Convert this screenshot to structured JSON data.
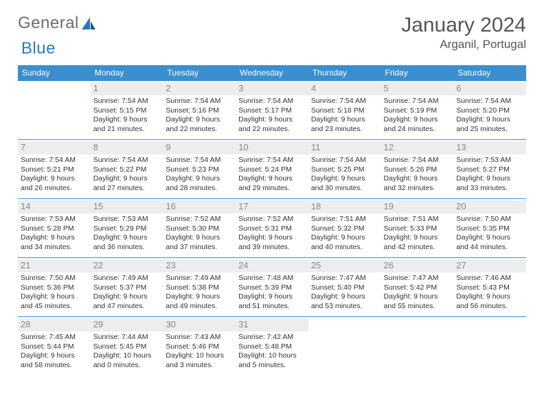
{
  "logo": {
    "text1": "General",
    "text2": "Blue"
  },
  "title": "January 2024",
  "location": "Arganil, Portugal",
  "weekdays": [
    "Sunday",
    "Monday",
    "Tuesday",
    "Wednesday",
    "Thursday",
    "Friday",
    "Saturday"
  ],
  "colors": {
    "header_bg": "#3a8fcf",
    "header_fg": "#ffffff",
    "daynum_bg": "#ededed",
    "daynum_fg": "#888888",
    "row_border": "#3a8fcf",
    "text": "#333333",
    "logo_gray": "#6d6d6d",
    "logo_blue": "#2a7ab8"
  },
  "weeks": [
    [
      null,
      {
        "d": "1",
        "sr": "Sunrise: 7:54 AM",
        "ss": "Sunset: 5:15 PM",
        "dl1": "Daylight: 9 hours",
        "dl2": "and 21 minutes."
      },
      {
        "d": "2",
        "sr": "Sunrise: 7:54 AM",
        "ss": "Sunset: 5:16 PM",
        "dl1": "Daylight: 9 hours",
        "dl2": "and 22 minutes."
      },
      {
        "d": "3",
        "sr": "Sunrise: 7:54 AM",
        "ss": "Sunset: 5:17 PM",
        "dl1": "Daylight: 9 hours",
        "dl2": "and 22 minutes."
      },
      {
        "d": "4",
        "sr": "Sunrise: 7:54 AM",
        "ss": "Sunset: 5:18 PM",
        "dl1": "Daylight: 9 hours",
        "dl2": "and 23 minutes."
      },
      {
        "d": "5",
        "sr": "Sunrise: 7:54 AM",
        "ss": "Sunset: 5:19 PM",
        "dl1": "Daylight: 9 hours",
        "dl2": "and 24 minutes."
      },
      {
        "d": "6",
        "sr": "Sunrise: 7:54 AM",
        "ss": "Sunset: 5:20 PM",
        "dl1": "Daylight: 9 hours",
        "dl2": "and 25 minutes."
      }
    ],
    [
      {
        "d": "7",
        "sr": "Sunrise: 7:54 AM",
        "ss": "Sunset: 5:21 PM",
        "dl1": "Daylight: 9 hours",
        "dl2": "and 26 minutes."
      },
      {
        "d": "8",
        "sr": "Sunrise: 7:54 AM",
        "ss": "Sunset: 5:22 PM",
        "dl1": "Daylight: 9 hours",
        "dl2": "and 27 minutes."
      },
      {
        "d": "9",
        "sr": "Sunrise: 7:54 AM",
        "ss": "Sunset: 5:23 PM",
        "dl1": "Daylight: 9 hours",
        "dl2": "and 28 minutes."
      },
      {
        "d": "10",
        "sr": "Sunrise: 7:54 AM",
        "ss": "Sunset: 5:24 PM",
        "dl1": "Daylight: 9 hours",
        "dl2": "and 29 minutes."
      },
      {
        "d": "11",
        "sr": "Sunrise: 7:54 AM",
        "ss": "Sunset: 5:25 PM",
        "dl1": "Daylight: 9 hours",
        "dl2": "and 30 minutes."
      },
      {
        "d": "12",
        "sr": "Sunrise: 7:54 AM",
        "ss": "Sunset: 5:26 PM",
        "dl1": "Daylight: 9 hours",
        "dl2": "and 32 minutes."
      },
      {
        "d": "13",
        "sr": "Sunrise: 7:53 AM",
        "ss": "Sunset: 5:27 PM",
        "dl1": "Daylight: 9 hours",
        "dl2": "and 33 minutes."
      }
    ],
    [
      {
        "d": "14",
        "sr": "Sunrise: 7:53 AM",
        "ss": "Sunset: 5:28 PM",
        "dl1": "Daylight: 9 hours",
        "dl2": "and 34 minutes."
      },
      {
        "d": "15",
        "sr": "Sunrise: 7:53 AM",
        "ss": "Sunset: 5:29 PM",
        "dl1": "Daylight: 9 hours",
        "dl2": "and 36 minutes."
      },
      {
        "d": "16",
        "sr": "Sunrise: 7:52 AM",
        "ss": "Sunset: 5:30 PM",
        "dl1": "Daylight: 9 hours",
        "dl2": "and 37 minutes."
      },
      {
        "d": "17",
        "sr": "Sunrise: 7:52 AM",
        "ss": "Sunset: 5:31 PM",
        "dl1": "Daylight: 9 hours",
        "dl2": "and 39 minutes."
      },
      {
        "d": "18",
        "sr": "Sunrise: 7:51 AM",
        "ss": "Sunset: 5:32 PM",
        "dl1": "Daylight: 9 hours",
        "dl2": "and 40 minutes."
      },
      {
        "d": "19",
        "sr": "Sunrise: 7:51 AM",
        "ss": "Sunset: 5:33 PM",
        "dl1": "Daylight: 9 hours",
        "dl2": "and 42 minutes."
      },
      {
        "d": "20",
        "sr": "Sunrise: 7:50 AM",
        "ss": "Sunset: 5:35 PM",
        "dl1": "Daylight: 9 hours",
        "dl2": "and 44 minutes."
      }
    ],
    [
      {
        "d": "21",
        "sr": "Sunrise: 7:50 AM",
        "ss": "Sunset: 5:36 PM",
        "dl1": "Daylight: 9 hours",
        "dl2": "and 45 minutes."
      },
      {
        "d": "22",
        "sr": "Sunrise: 7:49 AM",
        "ss": "Sunset: 5:37 PM",
        "dl1": "Daylight: 9 hours",
        "dl2": "and 47 minutes."
      },
      {
        "d": "23",
        "sr": "Sunrise: 7:49 AM",
        "ss": "Sunset: 5:38 PM",
        "dl1": "Daylight: 9 hours",
        "dl2": "and 49 minutes."
      },
      {
        "d": "24",
        "sr": "Sunrise: 7:48 AM",
        "ss": "Sunset: 5:39 PM",
        "dl1": "Daylight: 9 hours",
        "dl2": "and 51 minutes."
      },
      {
        "d": "25",
        "sr": "Sunrise: 7:47 AM",
        "ss": "Sunset: 5:40 PM",
        "dl1": "Daylight: 9 hours",
        "dl2": "and 53 minutes."
      },
      {
        "d": "26",
        "sr": "Sunrise: 7:47 AM",
        "ss": "Sunset: 5:42 PM",
        "dl1": "Daylight: 9 hours",
        "dl2": "and 55 minutes."
      },
      {
        "d": "27",
        "sr": "Sunrise: 7:46 AM",
        "ss": "Sunset: 5:43 PM",
        "dl1": "Daylight: 9 hours",
        "dl2": "and 56 minutes."
      }
    ],
    [
      {
        "d": "28",
        "sr": "Sunrise: 7:45 AM",
        "ss": "Sunset: 5:44 PM",
        "dl1": "Daylight: 9 hours",
        "dl2": "and 58 minutes."
      },
      {
        "d": "29",
        "sr": "Sunrise: 7:44 AM",
        "ss": "Sunset: 5:45 PM",
        "dl1": "Daylight: 10 hours",
        "dl2": "and 0 minutes."
      },
      {
        "d": "30",
        "sr": "Sunrise: 7:43 AM",
        "ss": "Sunset: 5:46 PM",
        "dl1": "Daylight: 10 hours",
        "dl2": "and 3 minutes."
      },
      {
        "d": "31",
        "sr": "Sunrise: 7:42 AM",
        "ss": "Sunset: 5:48 PM",
        "dl1": "Daylight: 10 hours",
        "dl2": "and 5 minutes."
      },
      null,
      null,
      null
    ]
  ]
}
